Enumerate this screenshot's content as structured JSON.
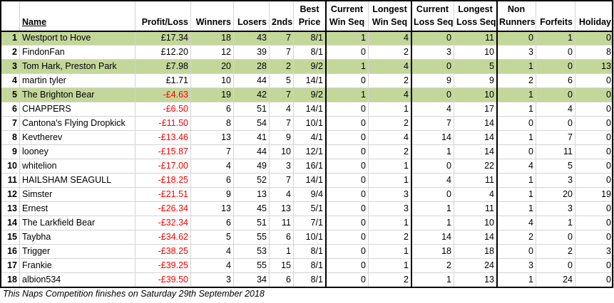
{
  "table": {
    "headers": [
      [
        "Name"
      ],
      [
        "Profit/Loss"
      ],
      [
        "Winners"
      ],
      [
        "Losers"
      ],
      [
        "2nds"
      ],
      [
        "Best",
        "Price"
      ],
      [
        "Current",
        "Win Seq"
      ],
      [
        "Longest",
        "Win Seq"
      ],
      [
        "Current",
        "Loss Seq"
      ],
      [
        "Longest",
        "Loss Seq"
      ],
      [
        "Non",
        "Runners"
      ],
      [
        "Forfeits"
      ],
      [
        "Holiday"
      ]
    ],
    "highlight_color": "#c4d79b",
    "negative_color": "#ff0000",
    "rows": [
      {
        "highlight": true,
        "cells": [
          1,
          "Westport to Hove",
          "£17.34",
          18,
          43,
          7,
          "8/1",
          1,
          4,
          0,
          11,
          0,
          1,
          0
        ]
      },
      {
        "cells": [
          2,
          "FindonFan",
          "£12.20",
          12,
          39,
          7,
          "8/1",
          0,
          2,
          3,
          10,
          3,
          0,
          8
        ]
      },
      {
        "highlight": true,
        "cells": [
          3,
          "Tom Hark, Preston Park",
          "£7.98",
          20,
          28,
          2,
          "9/2",
          1,
          4,
          0,
          5,
          1,
          0,
          13
        ]
      },
      {
        "cells": [
          4,
          "martin tyler",
          "£1.71",
          10,
          44,
          5,
          "14/1",
          0,
          2,
          9,
          9,
          2,
          6,
          0
        ]
      },
      {
        "highlight": true,
        "cells": [
          5,
          "The Brighton Bear",
          "-£4.63",
          19,
          42,
          7,
          "9/2",
          1,
          4,
          0,
          10,
          1,
          0,
          0
        ]
      },
      {
        "cells": [
          6,
          "CHAPPERS",
          "-£6.50",
          6,
          51,
          4,
          "14/1",
          0,
          1,
          4,
          17,
          1,
          4,
          0
        ]
      },
      {
        "cells": [
          7,
          "Cantona's Flying Dropkick",
          "-£11.50",
          8,
          54,
          7,
          "10/1",
          0,
          2,
          7,
          14,
          0,
          0,
          0
        ]
      },
      {
        "cells": [
          8,
          "Kevtherev",
          "-£13.46",
          13,
          41,
          9,
          "4/1",
          0,
          4,
          14,
          14,
          1,
          7,
          0
        ]
      },
      {
        "cells": [
          9,
          "looney",
          "-£15.87",
          7,
          44,
          10,
          "12/1",
          0,
          2,
          1,
          14,
          0,
          11,
          0
        ]
      },
      {
        "cells": [
          10,
          "whitelion",
          "-£17.00",
          4,
          49,
          3,
          "16/1",
          0,
          1,
          0,
          22,
          4,
          5,
          0
        ]
      },
      {
        "cells": [
          11,
          "HAILSHAM SEAGULL",
          "-£18.25",
          6,
          52,
          7,
          "14/1",
          0,
          1,
          4,
          11,
          1,
          3,
          0
        ]
      },
      {
        "cells": [
          12,
          "Simster",
          "-£21.51",
          9,
          13,
          4,
          "9/4",
          0,
          3,
          0,
          4,
          1,
          20,
          19
        ]
      },
      {
        "cells": [
          13,
          "Ernest",
          "-£26.34",
          13,
          45,
          13,
          "5/1",
          0,
          3,
          1,
          11,
          1,
          3,
          0
        ]
      },
      {
        "cells": [
          14,
          "The Larkfield Bear",
          "-£32.34",
          6,
          51,
          11,
          "7/1",
          0,
          1,
          1,
          10,
          4,
          1,
          0
        ]
      },
      {
        "cells": [
          15,
          "Taybha",
          "-£34.62",
          5,
          55,
          6,
          "10/1",
          0,
          2,
          14,
          14,
          2,
          0,
          0
        ]
      },
      {
        "cells": [
          16,
          "Trigger",
          "-£38.25",
          4,
          53,
          1,
          "8/1",
          0,
          1,
          18,
          18,
          0,
          2,
          3
        ]
      },
      {
        "cells": [
          17,
          "Frankie",
          "-£39.25",
          4,
          55,
          15,
          "8/1",
          0,
          1,
          2,
          24,
          3,
          0,
          0
        ]
      },
      {
        "cells": [
          18,
          "albion534",
          "-£39.50",
          3,
          34,
          6,
          "8/1",
          0,
          2,
          1,
          13,
          1,
          24,
          0
        ]
      }
    ],
    "footer": "This Naps Competition finishes on Saturday 29th September 2018"
  }
}
